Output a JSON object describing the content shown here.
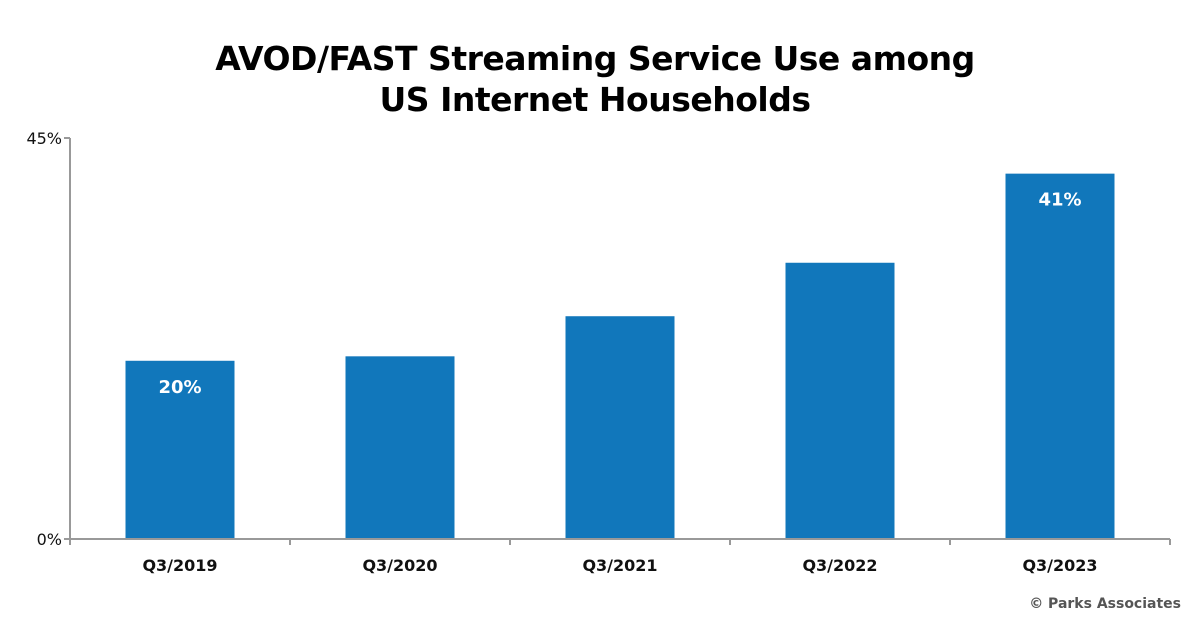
{
  "chart_data": {
    "type": "bar",
    "title": "AVOD/FAST Streaming Service Use among US Internet Households",
    "title_lines": [
      "AVOD/FAST Streaming Service Use among",
      "US Internet Households"
    ],
    "categories": [
      "Q3/2019",
      "Q3/2020",
      "Q3/2021",
      "Q3/2022",
      "Q3/2023"
    ],
    "values": [
      20,
      20.5,
      25,
      31,
      41
    ],
    "data_labels": [
      "20%",
      "",
      "",
      "",
      "41%"
    ],
    "ylim": [
      0,
      45
    ],
    "y_ticks": [
      "0%",
      "45%"
    ],
    "xlabel": "",
    "ylabel": "",
    "grid": false,
    "bar_color": "#1177bb"
  },
  "credit": "© Parks Associates"
}
